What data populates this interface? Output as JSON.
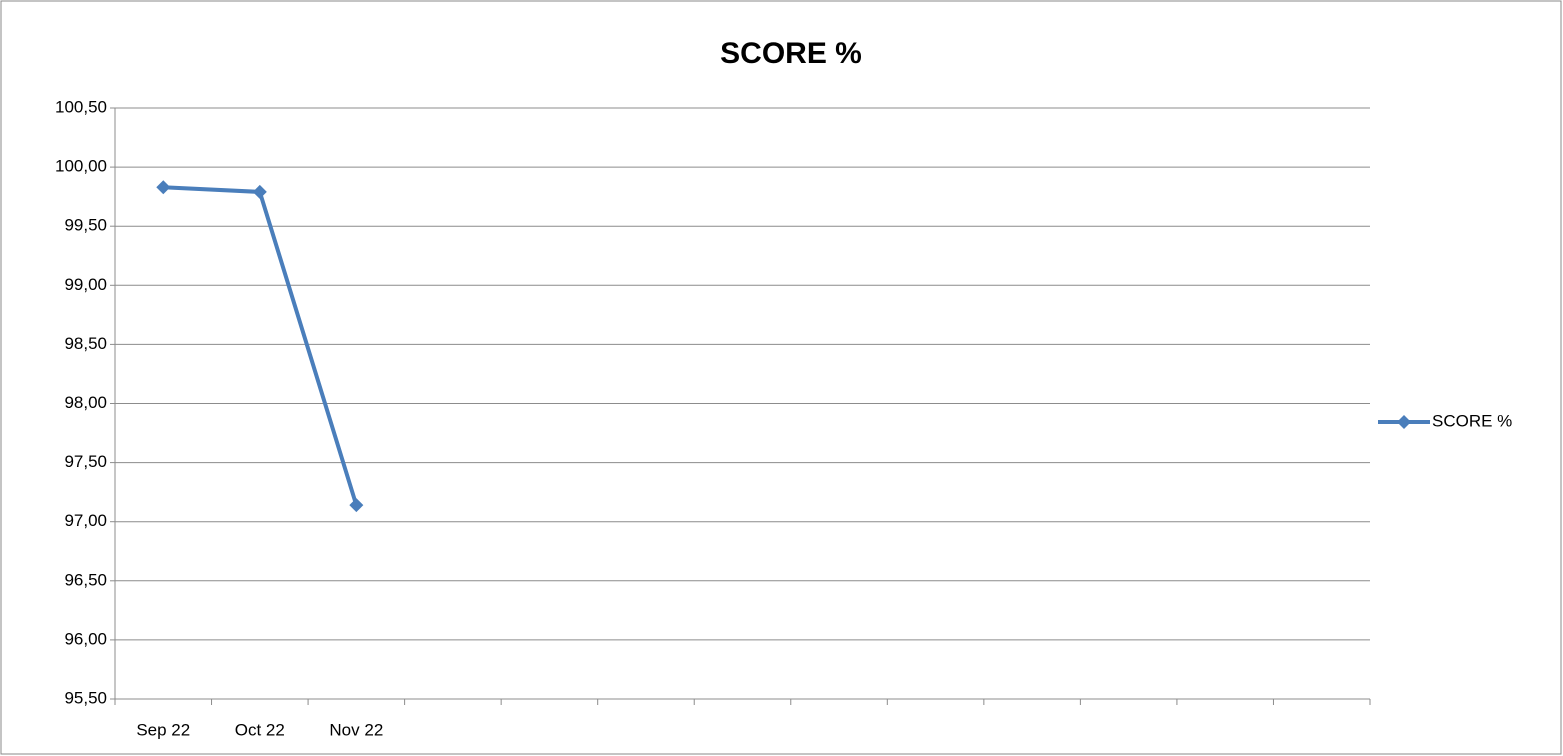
{
  "chart_data": {
    "type": "line",
    "title": "SCORE %",
    "categories": [
      "Sep 22",
      "Oct 22",
      "Nov 22",
      null,
      null,
      null,
      null,
      null,
      null,
      null,
      null,
      null,
      null
    ],
    "series": [
      {
        "name": "SCORE %",
        "color": "#4a7ebb",
        "values": [
          99.83,
          99.79,
          97.14,
          null,
          null,
          null,
          null,
          null,
          null,
          null,
          null,
          null,
          null
        ]
      }
    ],
    "ylim": [
      95.5,
      100.5
    ],
    "yticks": [
      {
        "value": 95.5,
        "label": "95,50"
      },
      {
        "value": 96,
        "label": "96,00"
      },
      {
        "value": 96.5,
        "label": "96,50"
      },
      {
        "value": 97,
        "label": "97,00"
      },
      {
        "value": 97.5,
        "label": "97,50"
      },
      {
        "value": 98,
        "label": "98,00"
      },
      {
        "value": 98.5,
        "label": "98,50"
      },
      {
        "value": 99,
        "label": "99,00"
      },
      {
        "value": 99.5,
        "label": "99,50"
      },
      {
        "value": 100,
        "label": "100,00"
      },
      {
        "value": 100.5,
        "label": "100,50"
      }
    ],
    "grid": true,
    "legend": "right"
  }
}
